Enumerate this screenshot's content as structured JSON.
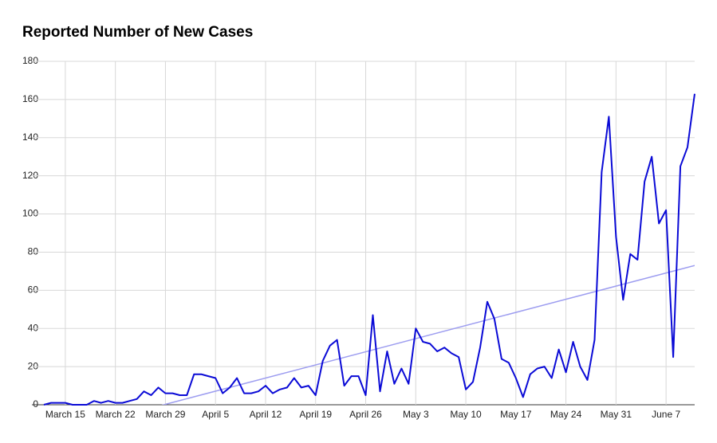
{
  "chart_data": {
    "type": "line",
    "title": "Reported Number of New Cases",
    "x": [
      "March 12",
      "March 13",
      "March 14",
      "March 15",
      "March 16",
      "March 17",
      "March 18",
      "March 19",
      "March 20",
      "March 21",
      "March 22",
      "March 23",
      "March 24",
      "March 25",
      "March 26",
      "March 27",
      "March 28",
      "March 29",
      "March 30",
      "March 31",
      "April 1",
      "April 2",
      "April 3",
      "April 4",
      "April 5",
      "April 6",
      "April 7",
      "April 8",
      "April 9",
      "April 10",
      "April 11",
      "April 12",
      "April 13",
      "April 14",
      "April 15",
      "April 16",
      "April 17",
      "April 18",
      "April 19",
      "April 20",
      "April 21",
      "April 22",
      "April 23",
      "April 24",
      "April 25",
      "April 26",
      "April 27",
      "April 28",
      "April 29",
      "April 30",
      "May 1",
      "May 2",
      "May 3",
      "May 4",
      "May 5",
      "May 6",
      "May 7",
      "May 8",
      "May 9",
      "May 10",
      "May 11",
      "May 12",
      "May 13",
      "May 14",
      "May 15",
      "May 16",
      "May 17",
      "May 18",
      "May 19",
      "May 20",
      "May 21",
      "May 22",
      "May 23",
      "May 24",
      "May 25",
      "May 26",
      "May 27",
      "May 28",
      "May 29",
      "May 30",
      "May 31",
      "June 1",
      "June 2",
      "June 3",
      "June 4",
      "June 5",
      "June 6",
      "June 7",
      "June 8",
      "June 9",
      "June 10",
      "June 11"
    ],
    "values": [
      0,
      1,
      1,
      1,
      0,
      0,
      0,
      2,
      1,
      2,
      1,
      1,
      2,
      3,
      7,
      5,
      9,
      6,
      6,
      5,
      5,
      16,
      16,
      15,
      14,
      6,
      9,
      14,
      6,
      6,
      7,
      10,
      6,
      8,
      9,
      14,
      9,
      10,
      5,
      23,
      31,
      34,
      10,
      15,
      15,
      5,
      47,
      7,
      28,
      11,
      19,
      11,
      40,
      33,
      32,
      28,
      30,
      27,
      25,
      8,
      12,
      30,
      54,
      45,
      24,
      22,
      14,
      4,
      16,
      19,
      20,
      14,
      29,
      17,
      33,
      20,
      13,
      34,
      122,
      151,
      88,
      55,
      79,
      76,
      117,
      130,
      95,
      102,
      25,
      125,
      135,
      163
    ],
    "color": "#0a0ad6",
    "trendline": true,
    "trendline_color": "#9d9df0",
    "ylim": [
      0,
      180
    ],
    "yticks": [
      0,
      20,
      40,
      60,
      80,
      100,
      120,
      140,
      160,
      180
    ],
    "xticks": [
      "March 15",
      "March 22",
      "March 29",
      "April 5",
      "April 12",
      "April 19",
      "April 26",
      "May 3",
      "May 10",
      "May 17",
      "May 24",
      "May 31",
      "June 7"
    ],
    "grid": true
  }
}
